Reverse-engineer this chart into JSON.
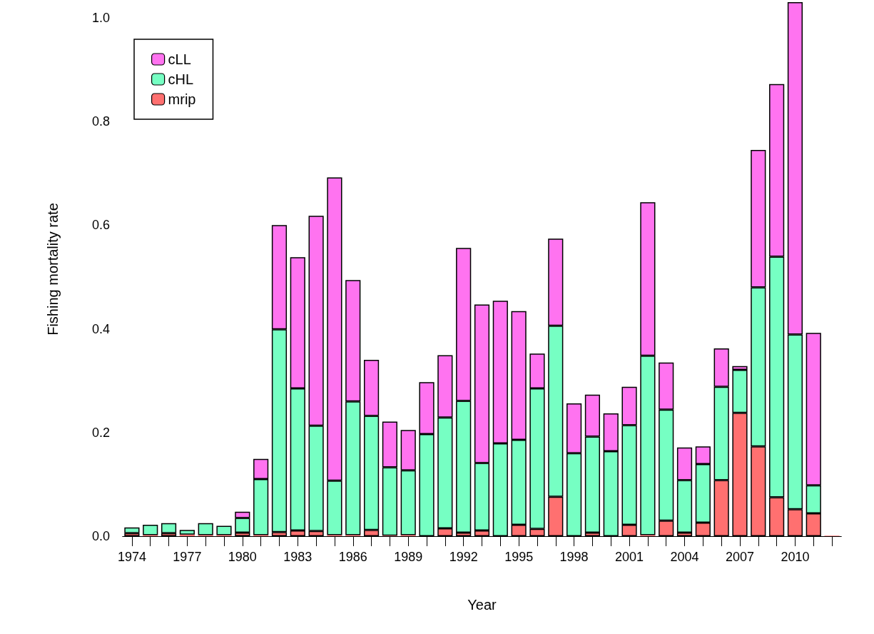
{
  "chart_data": {
    "type": "bar",
    "stacked": true,
    "xlabel": "Year",
    "ylabel": "Fishing mortality rate",
    "categories": [
      "1974",
      null,
      null,
      "1977",
      null,
      null,
      "1980",
      null,
      null,
      "1983",
      null,
      null,
      "1986",
      null,
      null,
      "1989",
      null,
      null,
      "1992",
      null,
      null,
      "1995",
      null,
      null,
      "1998",
      null,
      null,
      "2001",
      null,
      null,
      "2004",
      null,
      null,
      "2007",
      null,
      null,
      "2010",
      null,
      null
    ],
    "series": [
      {
        "name": "mrip",
        "color": "#ff7070",
        "values": [
          0.006,
          0.002,
          0.006,
          0.003,
          0.002,
          0.002,
          0.007,
          0.002,
          0.008,
          0.011,
          0.01,
          0.002,
          0.002,
          0.012,
          0.001,
          0.002,
          0,
          0.015,
          0.007,
          0.011,
          0,
          0.022,
          0.014,
          0.076,
          0,
          0.007,
          0,
          0.022,
          0.002,
          0.03,
          0.007,
          0.026,
          0.108,
          0.238,
          0.173,
          0.075,
          0.052,
          0.044,
          0.001
        ]
      },
      {
        "name": "cHL",
        "color": "#76ffc3",
        "values": [
          0.011,
          0.02,
          0.019,
          0.009,
          0.023,
          0.018,
          0.028,
          0.108,
          0.391,
          0.274,
          0.203,
          0.105,
          0.258,
          0.22,
          0.132,
          0.125,
          0.197,
          0.214,
          0.254,
          0.13,
          0.179,
          0.164,
          0.271,
          0.33,
          0.16,
          0.185,
          0.164,
          0.192,
          0.346,
          0.214,
          0.101,
          0.113,
          0.18,
          0.083,
          0.307,
          0.464,
          0.337,
          0.054,
          0
        ]
      },
      {
        "name": "cLL",
        "color": "#ff73f0",
        "values": [
          0,
          0,
          0,
          0,
          0,
          0,
          0.012,
          0.039,
          0.201,
          0.253,
          0.405,
          0.585,
          0.234,
          0.108,
          0.088,
          0.078,
          0.1,
          0.12,
          0.295,
          0.306,
          0.275,
          0.248,
          0.067,
          0.168,
          0.096,
          0.081,
          0.073,
          0.074,
          0.296,
          0.091,
          0.063,
          0.034,
          0.074,
          0.007,
          0.265,
          0.333,
          0.641,
          0.294,
          0
        ]
      }
    ],
    "ylim": [
      0,
      1.03
    ],
    "yticks": [
      {
        "value": 0,
        "label": "0.0"
      },
      {
        "value": 0.2,
        "label": "0.2"
      },
      {
        "value": 0.4,
        "label": "0.4"
      },
      {
        "value": 0.6,
        "label": "0.6"
      },
      {
        "value": 0.8,
        "label": "0.8"
      },
      {
        "value": 1,
        "label": "1.0"
      }
    ],
    "grid": false,
    "legend": "top left"
  }
}
